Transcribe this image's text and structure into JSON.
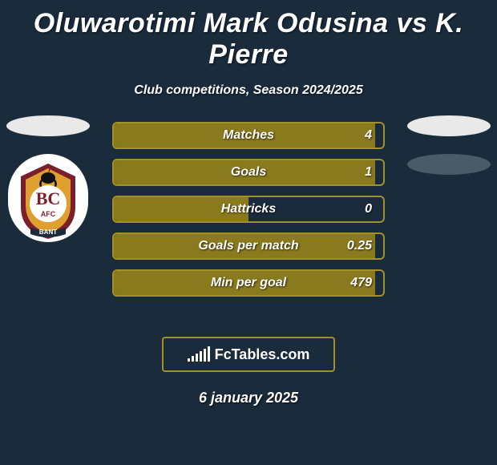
{
  "title": "Oluwarotimi Mark Odusina vs K. Pierre",
  "subtitle": "Club competitions, Season 2024/2025",
  "date": "6 january 2025",
  "brand": "FcTables.com",
  "colors": {
    "accent": "#a29028",
    "accent_fill": "#8a7a1e",
    "background": "#1a2b3c",
    "oval_light": "#e9e9e9",
    "oval_dark": "#4a5a68"
  },
  "badge": {
    "maroon": "#7a1f2b",
    "amber": "#e0a030",
    "white": "#ffffff",
    "black": "#111111",
    "initials": "BC",
    "sub": "AFC",
    "banner": "BANT"
  },
  "left_ovals": 1,
  "right_ovals": 2,
  "stats": [
    {
      "label": "Matches",
      "value": "4",
      "fill_pct": 97
    },
    {
      "label": "Goals",
      "value": "1",
      "fill_pct": 97
    },
    {
      "label": "Hattricks",
      "value": "0",
      "fill_pct": 50
    },
    {
      "label": "Goals per match",
      "value": "0.25",
      "fill_pct": 97
    },
    {
      "label": "Min per goal",
      "value": "479",
      "fill_pct": 97
    }
  ],
  "brand_bars": [
    4,
    7,
    10,
    13,
    16,
    19
  ]
}
